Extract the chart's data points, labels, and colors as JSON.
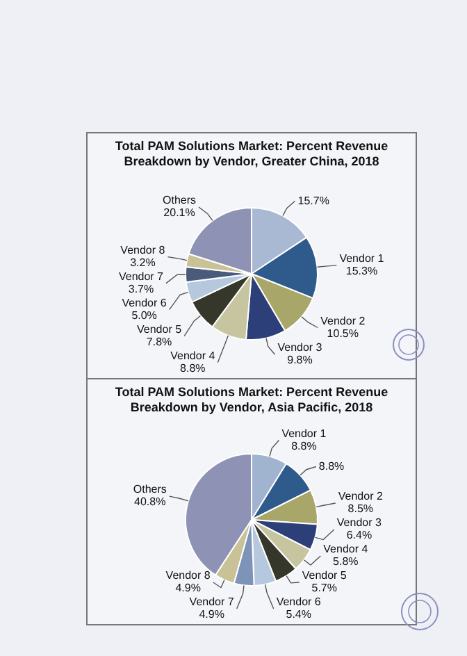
{
  "chart_data": [
    {
      "type": "pie",
      "title": "Total PAM Solutions Market: Percent Revenue Breakdown by Vendor, Greater China, 2018",
      "categories": [
        null,
        "Vendor 1",
        "Vendor 2",
        "Vendor 3",
        "Vendor 4",
        "Vendor 5",
        "Vendor 6",
        "Vendor 7",
        "Vendor 8",
        "Others"
      ],
      "values": [
        15.7,
        15.3,
        10.5,
        9.8,
        8.8,
        7.8,
        5.0,
        3.7,
        3.2,
        20.1
      ],
      "value_labels": [
        "15.7%",
        "15.3%",
        "10.5%",
        "9.8%",
        "8.8%",
        "7.8%",
        "5.0%",
        "3.7%",
        "3.2%",
        "20.1%"
      ],
      "colors": [
        "#a9b9d4",
        "#2f5a8c",
        "#a9a66a",
        "#2c3f78",
        "#c7c4a0",
        "#35372a",
        "#b6c8dd",
        "#4a5a7a",
        "#c8c296",
        "#8e93b5"
      ]
    },
    {
      "type": "pie",
      "title": "Total PAM Solutions Market: Percent Revenue Breakdown by Vendor, Asia Pacific, 2018",
      "categories": [
        "Vendor 1",
        null,
        "Vendor 2",
        "Vendor 3",
        "Vendor 4",
        "Vendor 5",
        "Vendor 6",
        "Vendor 7",
        "Vendor 8",
        "Others"
      ],
      "values": [
        8.8,
        8.8,
        8.5,
        6.4,
        5.8,
        5.7,
        5.4,
        4.9,
        4.9,
        40.8
      ],
      "value_labels": [
        "8.8%",
        "8.8%",
        "8.5%",
        "6.4%",
        "5.8%",
        "5.7%",
        "5.4%",
        "4.9%",
        "4.9%",
        "40.8%"
      ],
      "colors": [
        "#a0b3cf",
        "#2f5a8c",
        "#a9a66a",
        "#2c3f78",
        "#c7c4a0",
        "#35372a",
        "#b6c8dd",
        "#7e93b8",
        "#c8c296",
        "#8e93b5"
      ]
    }
  ]
}
